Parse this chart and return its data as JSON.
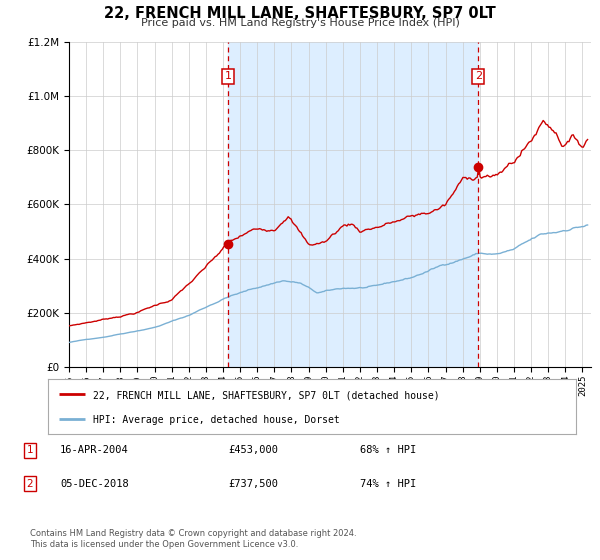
{
  "title": "22, FRENCH MILL LANE, SHAFTESBURY, SP7 0LT",
  "subtitle": "Price paid vs. HM Land Registry's House Price Index (HPI)",
  "legend_line1": "22, FRENCH MILL LANE, SHAFTESBURY, SP7 0LT (detached house)",
  "legend_line2": "HPI: Average price, detached house, Dorset",
  "sale1_date": "16-APR-2004",
  "sale1_price": "£453,000",
  "sale1_hpi": "68% ↑ HPI",
  "sale1_year": 2004.29,
  "sale1_value": 453000,
  "sale2_date": "05-DEC-2018",
  "sale2_price": "£737,500",
  "sale2_hpi": "74% ↑ HPI",
  "sale2_year": 2018.92,
  "sale2_value": 737500,
  "red_color": "#cc0000",
  "blue_color": "#7ab0d4",
  "bg_color": "#ddeeff",
  "plot_bg": "#ffffff",
  "footer": "Contains HM Land Registry data © Crown copyright and database right 2024.\nThis data is licensed under the Open Government Licence v3.0.",
  "ylim_max": 1200000,
  "xlim_start": 1995.0,
  "xlim_end": 2025.5
}
